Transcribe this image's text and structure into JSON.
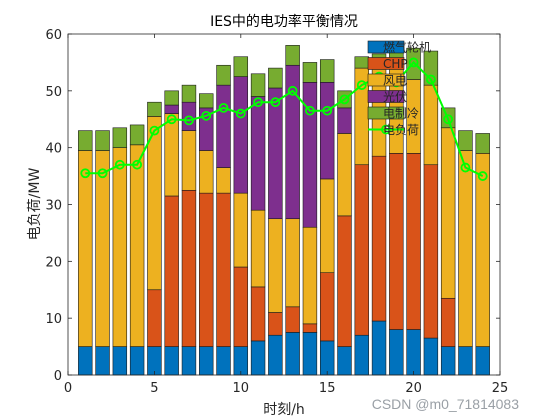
{
  "chart_data": {
    "type": "bar",
    "stacked": true,
    "title": "IES中的电功率平衡情况",
    "xlabel": "时刻/h",
    "ylabel": "电负荷/MW",
    "xlim": [
      0,
      25
    ],
    "ylim": [
      0,
      60
    ],
    "xticks": [
      "0",
      "5",
      "10",
      "15",
      "20",
      "25"
    ],
    "yticks": [
      "0",
      "10",
      "20",
      "30",
      "40",
      "50",
      "60"
    ],
    "grid": false,
    "legend": "top-right",
    "x": [
      1,
      2,
      3,
      4,
      5,
      6,
      7,
      8,
      9,
      10,
      11,
      12,
      13,
      14,
      15,
      16,
      17,
      18,
      19,
      20,
      21,
      22,
      23,
      24
    ],
    "series": [
      {
        "name": "燃气轮机",
        "color": "#0072BD",
        "values": [
          5,
          5,
          5,
          5,
          5,
          5,
          5,
          5,
          5,
          5,
          6,
          7,
          7.5,
          7.5,
          6,
          5,
          7,
          9.5,
          8,
          8,
          6.5,
          5,
          5,
          5
        ]
      },
      {
        "name": "CHP",
        "color": "#D95319",
        "values": [
          0,
          0,
          0,
          0,
          10,
          26.5,
          27.5,
          27,
          27,
          14,
          9.5,
          4,
          4.5,
          1.5,
          12,
          23,
          30,
          29,
          31,
          31,
          30.5,
          8.5,
          0,
          0
        ]
      },
      {
        "name": "风电",
        "color": "#EDB120",
        "values": [
          34.5,
          34.5,
          35,
          35.5,
          30.5,
          14.5,
          10.5,
          7.5,
          4.5,
          13,
          13.5,
          16.5,
          15.5,
          17,
          16.5,
          14.5,
          17,
          16.5,
          15,
          13,
          14,
          30,
          34.5,
          34
        ]
      },
      {
        "name": "光伏",
        "color": "#7E2F8E",
        "values": [
          0,
          0,
          0,
          0,
          0,
          1.5,
          5,
          7.5,
          14.5,
          20.5,
          20,
          23,
          27,
          25.5,
          17,
          4.5,
          0,
          0,
          0,
          0,
          0,
          0,
          0,
          0
        ]
      },
      {
        "name": "电制冷",
        "color": "#77AC30",
        "values": [
          3.5,
          3.5,
          3.5,
          3.5,
          2.5,
          2.5,
          3,
          2.5,
          3.5,
          3.5,
          4,
          3.5,
          3.5,
          3.5,
          4,
          3,
          2,
          1.5,
          3.5,
          5.5,
          6,
          3.5,
          3.5,
          3.5
        ]
      }
    ],
    "line": {
      "name": "电负荷",
      "color": "#00FF00",
      "values": [
        35.5,
        35.5,
        37,
        37,
        43,
        45,
        44.8,
        45.6,
        47,
        46,
        48,
        48,
        50,
        46.5,
        46.5,
        48.5,
        51,
        52.5,
        51.5,
        55,
        52,
        45,
        36.5,
        35
      ]
    }
  },
  "footer": {
    "watermark": "CSDN @m0_71814083"
  }
}
